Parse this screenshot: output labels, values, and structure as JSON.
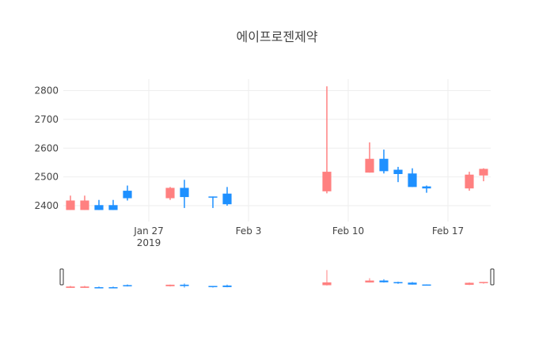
{
  "chart_data": {
    "type": "candlestick",
    "title": "에이프로젠제약",
    "xlabel": "",
    "ylabel": "",
    "ylim": [
      2345,
      2840
    ],
    "y_ticks": [
      2400,
      2500,
      2600,
      2700,
      2800
    ],
    "x_ticks": [
      {
        "date": "2019-01-27",
        "label": "Jan 27",
        "sublabel": "2019"
      },
      {
        "date": "2019-02-03",
        "label": "Feb 3",
        "sublabel": ""
      },
      {
        "date": "2019-02-10",
        "label": "Feb 10",
        "sublabel": ""
      },
      {
        "date": "2019-02-17",
        "label": "Feb 17",
        "sublabel": ""
      }
    ],
    "xlim": [
      "2019-01-21",
      "2019-02-19"
    ],
    "grid": true,
    "legend": "none",
    "rangeslider": true,
    "colors": {
      "increasing": "#FF8080",
      "decreasing": "#1E90FF",
      "grid": "#eeeeee"
    },
    "candles": [
      {
        "date": "2019-01-21",
        "open": 2385,
        "high": 2435,
        "low": 2385,
        "close": 2418
      },
      {
        "date": "2019-01-22",
        "open": 2385,
        "high": 2435,
        "low": 2385,
        "close": 2418
      },
      {
        "date": "2019-01-23",
        "open": 2402,
        "high": 2420,
        "low": 2385,
        "close": 2385
      },
      {
        "date": "2019-01-24",
        "open": 2402,
        "high": 2420,
        "low": 2385,
        "close": 2385
      },
      {
        "date": "2019-01-25",
        "open": 2452,
        "high": 2470,
        "low": 2418,
        "close": 2426
      },
      {
        "date": "2019-01-28",
        "open": 2426,
        "high": 2465,
        "low": 2420,
        "close": 2462
      },
      {
        "date": "2019-01-29",
        "open": 2462,
        "high": 2490,
        "low": 2392,
        "close": 2430
      },
      {
        "date": "2019-01-31",
        "open": 2432,
        "high": 2432,
        "low": 2392,
        "close": 2430
      },
      {
        "date": "2019-02-01",
        "open": 2442,
        "high": 2465,
        "low": 2400,
        "close": 2405
      },
      {
        "date": "2019-02-08",
        "open": 2450,
        "high": 2815,
        "low": 2443,
        "close": 2518
      },
      {
        "date": "2019-02-11",
        "open": 2515,
        "high": 2620,
        "low": 2515,
        "close": 2563
      },
      {
        "date": "2019-02-12",
        "open": 2563,
        "high": 2595,
        "low": 2512,
        "close": 2520
      },
      {
        "date": "2019-02-13",
        "open": 2525,
        "high": 2535,
        "low": 2482,
        "close": 2510
      },
      {
        "date": "2019-02-14",
        "open": 2512,
        "high": 2530,
        "low": 2465,
        "close": 2465
      },
      {
        "date": "2019-02-15",
        "open": 2467,
        "high": 2470,
        "low": 2445,
        "close": 2460
      },
      {
        "date": "2019-02-18",
        "open": 2460,
        "high": 2518,
        "low": 2452,
        "close": 2508
      },
      {
        "date": "2019-02-19",
        "open": 2505,
        "high": 2530,
        "low": 2485,
        "close": 2528
      }
    ]
  }
}
